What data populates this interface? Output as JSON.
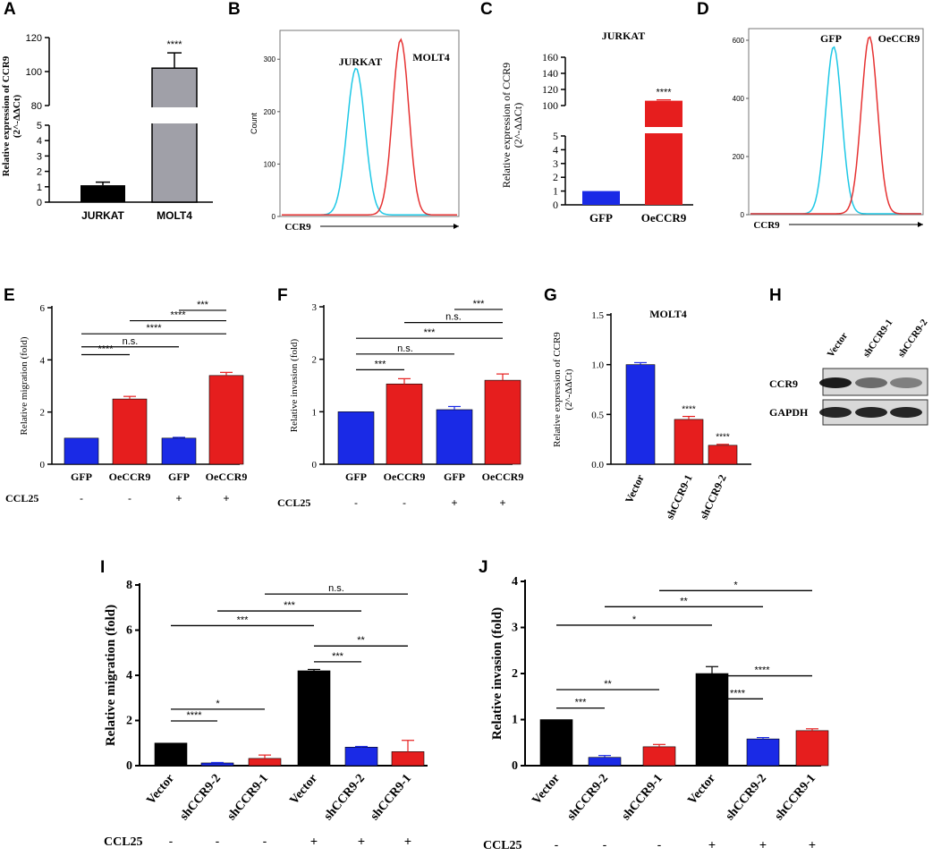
{
  "chart_data": [
    {
      "panel": "A",
      "type": "bar",
      "categories": [
        "JURKAT",
        "MOLT4"
      ],
      "values": [
        1.1,
        102
      ],
      "errors": [
        0.2,
        9
      ],
      "colors": [
        "#000000",
        "#a0a0a8"
      ],
      "ylabel": "Relative expression of CCR9 (2^-ΔΔCt)",
      "yticks_low": [
        "0",
        "1",
        "2",
        "3",
        "4",
        "5"
      ],
      "yticks_high": [
        "80",
        "100",
        "120"
      ],
      "sig": [
        "****"
      ]
    },
    {
      "panel": "B",
      "type": "line",
      "series": [
        {
          "name": "JURKAT",
          "color": "#1ec8e6",
          "peak": 280
        },
        {
          "name": "MOLT4",
          "color": "#e63232",
          "peak": 335
        }
      ],
      "xlabel": "CCR9",
      "ylabel": "Count",
      "yticks": [
        "0",
        "100",
        "200",
        "300"
      ]
    },
    {
      "panel": "C",
      "type": "bar",
      "title": "JURKAT",
      "categories": [
        "GFP",
        "OeCCR9"
      ],
      "values": [
        1,
        106
      ],
      "errors": [
        0.05,
        1
      ],
      "colors": [
        "#1a2ae6",
        "#e61e1e"
      ],
      "ylabel": "Relative expression of CCR9 (2^-ΔΔCt)",
      "yticks_low": [
        "0",
        "1",
        "2",
        "3",
        "4",
        "5"
      ],
      "yticks_high": [
        "100",
        "120",
        "140",
        "160"
      ],
      "sig": [
        "****"
      ]
    },
    {
      "panel": "D",
      "type": "line",
      "series": [
        {
          "name": "GFP",
          "color": "#1ec8e6",
          "peak": 575
        },
        {
          "name": "OeCCR9",
          "color": "#e63232",
          "peak": 610
        }
      ],
      "xlabel": "CCR9",
      "yticks": [
        "0",
        "200",
        "400",
        "600"
      ]
    },
    {
      "panel": "E",
      "type": "bar",
      "categories": [
        "GFP",
        "OeCCR9",
        "GFP",
        "OeCCR9"
      ],
      "ccl25_label": "CCL25",
      "ccl25": [
        "-",
        "-",
        "+",
        "+"
      ],
      "values": [
        1,
        2.5,
        1,
        3.4
      ],
      "errors": [
        0,
        0.1,
        0.03,
        0.12
      ],
      "colors": [
        "#1a2ae6",
        "#e61e1e",
        "#1a2ae6",
        "#e61e1e"
      ],
      "ylabel": "Relative migration (fold)",
      "ylim": [
        0,
        6
      ],
      "yticks": [
        "0",
        "2",
        "4",
        "6"
      ],
      "sig": [
        "****",
        "n.s.",
        "****",
        "****",
        "***"
      ]
    },
    {
      "panel": "F",
      "type": "bar",
      "categories": [
        "GFP",
        "OeCCR9",
        "GFP",
        "OeCCR9"
      ],
      "ccl25_label": "CCL25",
      "ccl25": [
        "-",
        "-",
        "+",
        "+"
      ],
      "values": [
        1,
        1.53,
        1.04,
        1.6
      ],
      "errors": [
        0,
        0.1,
        0.06,
        0.12
      ],
      "colors": [
        "#1a2ae6",
        "#e61e1e",
        "#1a2ae6",
        "#e61e1e"
      ],
      "ylabel": "Relative invasion (fold)",
      "ylim": [
        0,
        3
      ],
      "yticks": [
        "0",
        "1",
        "2",
        "3"
      ],
      "sig": [
        "***",
        "n.s.",
        "***",
        "n.s.",
        "***"
      ]
    },
    {
      "panel": "G",
      "type": "bar",
      "title": "MOLT4",
      "categories": [
        "Vector",
        "shCCR9-1",
        "shCCR9-2"
      ],
      "values": [
        1.0,
        0.45,
        0.19
      ],
      "errors": [
        0.02,
        0.03,
        0.01
      ],
      "colors": [
        "#1a2ae6",
        "#e61e1e",
        "#e61e1e"
      ],
      "ylabel": "Relative expression of CCR9 (2^-ΔΔCt)",
      "ylim": [
        0,
        1.5
      ],
      "yticks": [
        "0.0",
        "0.5",
        "1.0",
        "1.5"
      ],
      "sig": [
        "****",
        "****"
      ]
    },
    {
      "panel": "H",
      "type": "table",
      "lanes": [
        "Vector",
        "shCCR9-1",
        "shCCR9-2"
      ],
      "rows": [
        "CCR9",
        "GAPDH"
      ]
    },
    {
      "panel": "I",
      "type": "bar",
      "categories": [
        "Vector",
        "shCCR9-2",
        "shCCR9-1",
        "Vector",
        "shCCR9-2",
        "shCCR9-1"
      ],
      "ccl25_label": "CCL25",
      "ccl25": [
        "-",
        "-",
        "-",
        "+",
        "+",
        "+"
      ],
      "values": [
        1,
        0.12,
        0.32,
        4.2,
        0.82,
        0.62
      ],
      "errors": [
        0,
        0.02,
        0.15,
        0.06,
        0.03,
        0.5
      ],
      "colors": [
        "#000000",
        "#1a2ae6",
        "#e61e1e",
        "#000000",
        "#1a2ae6",
        "#e61e1e"
      ],
      "ylabel": "Relative migration (fold)",
      "ylim": [
        0,
        8
      ],
      "yticks": [
        "0",
        "2",
        "4",
        "6",
        "8"
      ],
      "sig": [
        "****",
        "*",
        "***",
        "***",
        "n.s.",
        "***",
        "**"
      ]
    },
    {
      "panel": "J",
      "type": "bar",
      "categories": [
        "Vector",
        "shCCR9-2",
        "shCCR9-1",
        "Vector",
        "shCCR9-2",
        "shCCR9-1"
      ],
      "ccl25_label": "CCL25",
      "ccl25": [
        "-",
        "-",
        "-",
        "+",
        "+",
        "+"
      ],
      "values": [
        1,
        0.18,
        0.41,
        2.0,
        0.58,
        0.76
      ],
      "errors": [
        0,
        0.04,
        0.05,
        0.15,
        0.03,
        0.04
      ],
      "colors": [
        "#000000",
        "#1a2ae6",
        "#e61e1e",
        "#000000",
        "#1a2ae6",
        "#e61e1e"
      ],
      "ylabel": "Relative invasion (fold)",
      "ylim": [
        0,
        4
      ],
      "yticks": [
        "0",
        "1",
        "2",
        "3",
        "4"
      ],
      "sig": [
        "***",
        "**",
        "*",
        "**",
        "*",
        "****",
        "****"
      ]
    }
  ]
}
